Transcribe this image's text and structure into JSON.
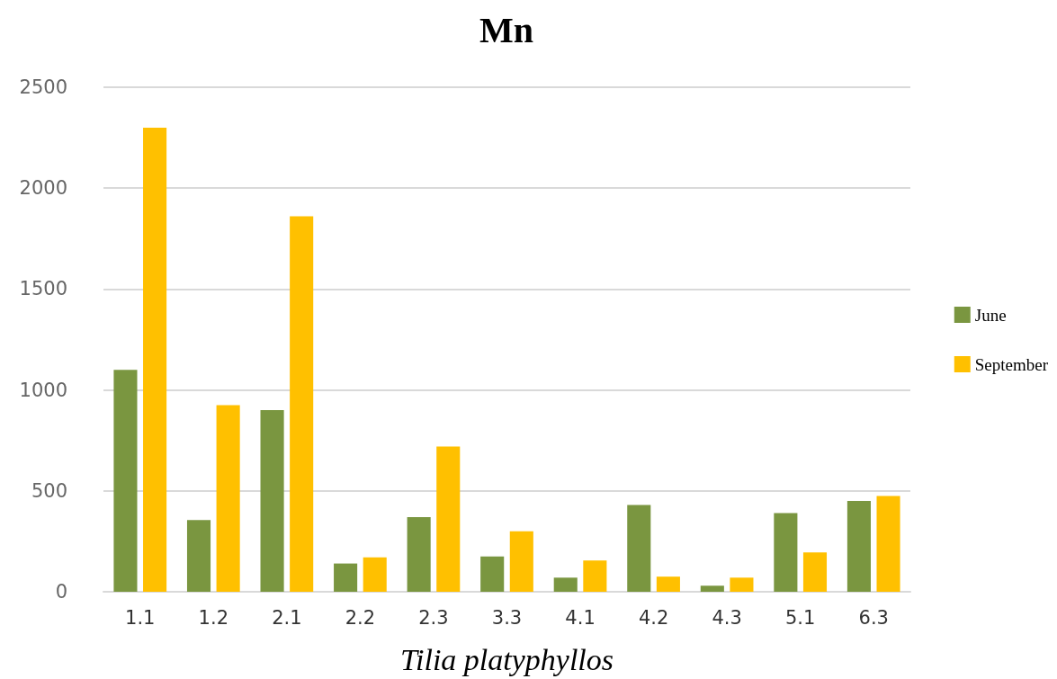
{
  "chart_data": {
    "type": "bar",
    "title": "Mn",
    "xlabel": "Tilia platyphyllos",
    "categories": [
      "1.1",
      "1.2",
      "2.1",
      "2.2",
      "2.3",
      "3.3",
      "4.1",
      "4.2",
      "4.3",
      "5.1",
      "6.3"
    ],
    "series": [
      {
        "name": "June",
        "color": "#7a9640",
        "values": [
          1100,
          355,
          900,
          140,
          370,
          175,
          70,
          430,
          30,
          390,
          450
        ]
      },
      {
        "name": "September",
        "color": "#ffc000",
        "values": [
          2300,
          925,
          1860,
          170,
          720,
          300,
          155,
          75,
          70,
          195,
          475
        ]
      }
    ],
    "ylim": [
      0,
      2500
    ],
    "yticks": [
      0,
      500,
      1000,
      1500,
      2000,
      2500
    ],
    "grid": "y",
    "legend": "right"
  }
}
